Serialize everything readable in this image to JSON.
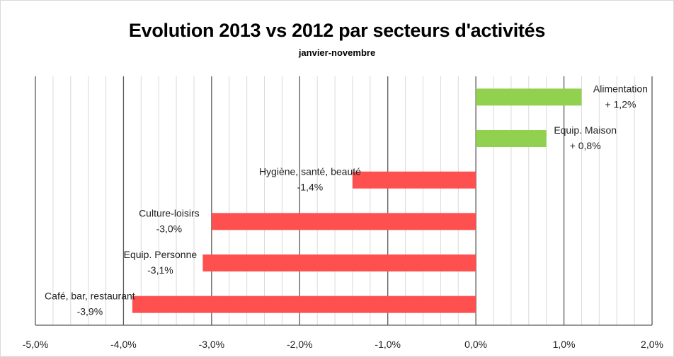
{
  "chart_data": {
    "type": "bar",
    "orientation": "horizontal",
    "title": "Evolution 2013 vs 2012 par secteurs d'activités",
    "subtitle": "janvier-novembre",
    "xlabel": "",
    "ylabel": "",
    "xlim": [
      -5.0,
      2.0
    ],
    "tick_values": [
      -5,
      -4,
      -3,
      -2,
      -1,
      0,
      1,
      2
    ],
    "tick_labels": [
      "-5,0%",
      "-4,0%",
      "-3,0%",
      "-2,0%",
      "-1,0%",
      "0,0%",
      "1,0%",
      "2,0%"
    ],
    "grid": true,
    "legend": "none",
    "categories": [
      "Alimentation",
      "Equip. Maison",
      "Hygiène, santé, beauté",
      "Culture-loisirs",
      "Equip. Personne",
      "Café, bar, restaurant"
    ],
    "values": [
      1.2,
      0.8,
      -1.4,
      -3.0,
      -3.1,
      -3.9
    ],
    "value_labels": [
      "+ 1,2%",
      "+ 0,8%",
      "-1,4%",
      "-3,0%",
      "-3,1%",
      "-3,9%"
    ],
    "colors": {
      "positive": "#92d050",
      "negative": "#ff5050",
      "major_grid": "#595959",
      "minor_grid": "#d9d9d9"
    }
  }
}
